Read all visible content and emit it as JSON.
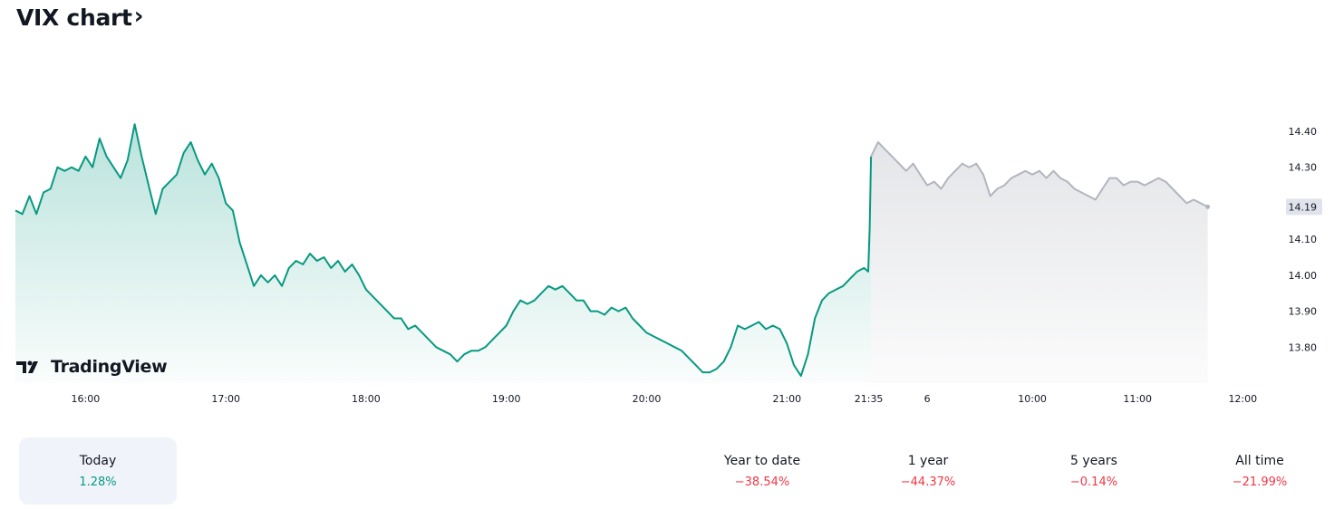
{
  "header": {
    "title": "VIX chart",
    "chevron": "›"
  },
  "logo": {
    "name": "TradingView",
    "icon": "tradingview-logo-icon"
  },
  "colors": {
    "session_line": "#089981",
    "post_line": "#b2b5be",
    "positive": "#089981",
    "negative": "#f23645",
    "price_tag_bg": "#e0e3eb"
  },
  "performance": [
    {
      "label": "Today",
      "value": "1.28%",
      "sign": "positive",
      "selected": true
    },
    {
      "label": "Year to date",
      "value": "−38.54%",
      "sign": "negative",
      "selected": false
    },
    {
      "label": "1 year",
      "value": "−44.37%",
      "sign": "negative",
      "selected": false
    },
    {
      "label": "5 years",
      "value": "−0.14%",
      "sign": "negative",
      "selected": false
    },
    {
      "label": "All time",
      "value": "−21.99%",
      "sign": "negative",
      "selected": false
    }
  ],
  "chart_data": {
    "type": "area",
    "x_tick_labels": [
      "16:00",
      "17:00",
      "18:00",
      "19:00",
      "20:00",
      "21:00",
      "21:35",
      "6",
      "10:00",
      "11:00",
      "12:00"
    ],
    "x_tick_times": [
      0.5,
      1.5,
      2.5,
      3.5,
      4.5,
      5.5,
      6.0833,
      6.5,
      7.25,
      8.0,
      8.75
    ],
    "x_range": [
      0.0,
      9.0
    ],
    "y_ticks": [
      14.4,
      14.3,
      14.1,
      14.0,
      13.9,
      13.8
    ],
    "y_range": [
      13.7,
      14.4
    ],
    "grid": false,
    "last_value": "14.19",
    "series": [
      {
        "session": "regular",
        "points": [
          [
            0.0,
            14.18
          ],
          [
            0.05,
            14.17
          ],
          [
            0.1,
            14.22
          ],
          [
            0.15,
            14.17
          ],
          [
            0.2,
            14.23
          ],
          [
            0.25,
            14.24
          ],
          [
            0.3,
            14.3
          ],
          [
            0.35,
            14.29
          ],
          [
            0.4,
            14.3
          ],
          [
            0.45,
            14.29
          ],
          [
            0.5,
            14.33
          ],
          [
            0.55,
            14.3
          ],
          [
            0.6,
            14.38
          ],
          [
            0.65,
            14.33
          ],
          [
            0.7,
            14.3
          ],
          [
            0.75,
            14.27
          ],
          [
            0.8,
            14.32
          ],
          [
            0.85,
            14.42
          ],
          [
            0.9,
            14.33
          ],
          [
            0.95,
            14.25
          ],
          [
            1.0,
            14.17
          ],
          [
            1.05,
            14.24
          ],
          [
            1.1,
            14.26
          ],
          [
            1.15,
            14.28
          ],
          [
            1.2,
            14.34
          ],
          [
            1.25,
            14.37
          ],
          [
            1.3,
            14.32
          ],
          [
            1.35,
            14.28
          ],
          [
            1.4,
            14.31
          ],
          [
            1.45,
            14.27
          ],
          [
            1.5,
            14.2
          ],
          [
            1.55,
            14.18
          ],
          [
            1.6,
            14.09
          ],
          [
            1.65,
            14.03
          ],
          [
            1.7,
            13.97
          ],
          [
            1.75,
            14.0
          ],
          [
            1.8,
            13.98
          ],
          [
            1.85,
            14.0
          ],
          [
            1.9,
            13.97
          ],
          [
            1.95,
            14.02
          ],
          [
            2.0,
            14.04
          ],
          [
            2.05,
            14.03
          ],
          [
            2.1,
            14.06
          ],
          [
            2.15,
            14.04
          ],
          [
            2.2,
            14.05
          ],
          [
            2.25,
            14.02
          ],
          [
            2.3,
            14.04
          ],
          [
            2.35,
            14.01
          ],
          [
            2.4,
            14.03
          ],
          [
            2.45,
            14.0
          ],
          [
            2.5,
            13.96
          ],
          [
            2.55,
            13.94
          ],
          [
            2.6,
            13.92
          ],
          [
            2.65,
            13.9
          ],
          [
            2.7,
            13.88
          ],
          [
            2.75,
            13.88
          ],
          [
            2.8,
            13.85
          ],
          [
            2.85,
            13.86
          ],
          [
            2.9,
            13.84
          ],
          [
            2.95,
            13.82
          ],
          [
            3.0,
            13.8
          ],
          [
            3.05,
            13.79
          ],
          [
            3.1,
            13.78
          ],
          [
            3.15,
            13.76
          ],
          [
            3.2,
            13.78
          ],
          [
            3.25,
            13.79
          ],
          [
            3.3,
            13.79
          ],
          [
            3.35,
            13.8
          ],
          [
            3.4,
            13.82
          ],
          [
            3.45,
            13.84
          ],
          [
            3.5,
            13.86
          ],
          [
            3.55,
            13.9
          ],
          [
            3.6,
            13.93
          ],
          [
            3.65,
            13.92
          ],
          [
            3.7,
            13.93
          ],
          [
            3.75,
            13.95
          ],
          [
            3.8,
            13.97
          ],
          [
            3.85,
            13.96
          ],
          [
            3.9,
            13.97
          ],
          [
            3.95,
            13.95
          ],
          [
            4.0,
            13.93
          ],
          [
            4.05,
            13.93
          ],
          [
            4.1,
            13.9
          ],
          [
            4.15,
            13.9
          ],
          [
            4.2,
            13.89
          ],
          [
            4.25,
            13.91
          ],
          [
            4.3,
            13.9
          ],
          [
            4.35,
            13.91
          ],
          [
            4.4,
            13.88
          ],
          [
            4.45,
            13.86
          ],
          [
            4.5,
            13.84
          ],
          [
            4.55,
            13.83
          ],
          [
            4.6,
            13.82
          ],
          [
            4.65,
            13.81
          ],
          [
            4.7,
            13.8
          ],
          [
            4.75,
            13.79
          ],
          [
            4.8,
            13.77
          ],
          [
            4.85,
            13.75
          ],
          [
            4.9,
            13.73
          ],
          [
            4.95,
            13.73
          ],
          [
            5.0,
            13.74
          ],
          [
            5.05,
            13.76
          ],
          [
            5.1,
            13.8
          ],
          [
            5.15,
            13.86
          ],
          [
            5.2,
            13.85
          ],
          [
            5.25,
            13.86
          ],
          [
            5.3,
            13.87
          ],
          [
            5.35,
            13.85
          ],
          [
            5.4,
            13.86
          ],
          [
            5.45,
            13.85
          ],
          [
            5.5,
            13.81
          ],
          [
            5.55,
            13.75
          ],
          [
            5.6,
            13.72
          ],
          [
            5.65,
            13.78
          ],
          [
            5.7,
            13.88
          ],
          [
            5.75,
            13.93
          ],
          [
            5.8,
            13.95
          ],
          [
            5.85,
            13.96
          ],
          [
            5.9,
            13.97
          ],
          [
            5.95,
            13.99
          ],
          [
            6.0,
            14.01
          ],
          [
            6.05,
            14.02
          ],
          [
            6.08,
            14.01
          ],
          [
            6.09,
            14.13
          ],
          [
            6.1,
            14.33
          ]
        ]
      },
      {
        "session": "post",
        "points": [
          [
            6.1,
            14.33
          ],
          [
            6.15,
            14.37
          ],
          [
            6.2,
            14.35
          ],
          [
            6.25,
            14.33
          ],
          [
            6.3,
            14.31
          ],
          [
            6.35,
            14.29
          ],
          [
            6.4,
            14.31
          ],
          [
            6.45,
            14.28
          ],
          [
            6.5,
            14.25
          ],
          [
            6.55,
            14.26
          ],
          [
            6.6,
            14.24
          ],
          [
            6.65,
            14.27
          ],
          [
            6.7,
            14.29
          ],
          [
            6.75,
            14.31
          ],
          [
            6.8,
            14.3
          ],
          [
            6.85,
            14.31
          ],
          [
            6.9,
            14.28
          ],
          [
            6.95,
            14.22
          ],
          [
            7.0,
            14.24
          ],
          [
            7.05,
            14.25
          ],
          [
            7.1,
            14.27
          ],
          [
            7.15,
            14.28
          ],
          [
            7.2,
            14.29
          ],
          [
            7.25,
            14.28
          ],
          [
            7.3,
            14.29
          ],
          [
            7.35,
            14.27
          ],
          [
            7.4,
            14.29
          ],
          [
            7.45,
            14.27
          ],
          [
            7.5,
            14.26
          ],
          [
            7.55,
            14.24
          ],
          [
            7.6,
            14.23
          ],
          [
            7.65,
            14.22
          ],
          [
            7.7,
            14.21
          ],
          [
            7.75,
            14.24
          ],
          [
            7.8,
            14.27
          ],
          [
            7.85,
            14.27
          ],
          [
            7.9,
            14.25
          ],
          [
            7.95,
            14.26
          ],
          [
            8.0,
            14.26
          ],
          [
            8.05,
            14.25
          ],
          [
            8.1,
            14.26
          ],
          [
            8.15,
            14.27
          ],
          [
            8.2,
            14.26
          ],
          [
            8.25,
            14.24
          ],
          [
            8.3,
            14.22
          ],
          [
            8.35,
            14.2
          ],
          [
            8.4,
            14.21
          ],
          [
            8.45,
            14.2
          ],
          [
            8.5,
            14.19
          ]
        ]
      }
    ]
  }
}
